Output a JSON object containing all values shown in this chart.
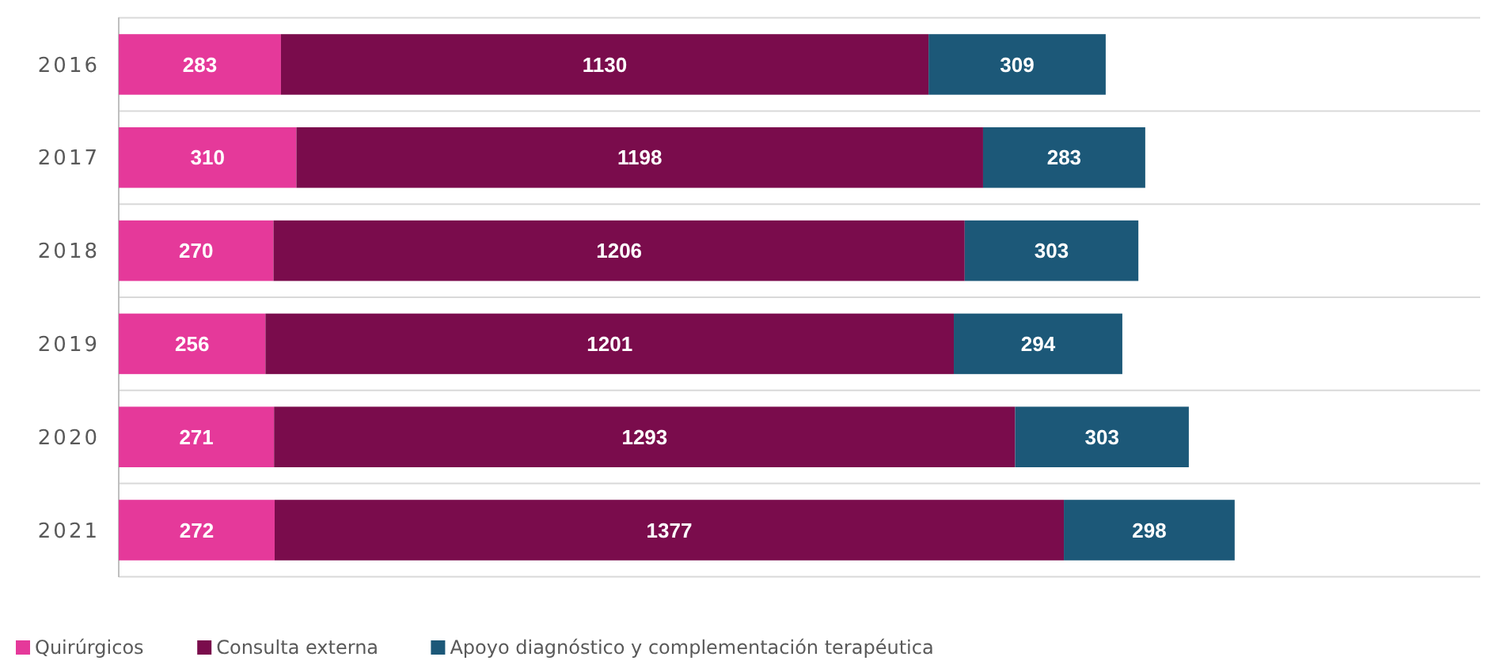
{
  "chart_data": {
    "type": "bar",
    "orientation": "horizontal",
    "stacked": true,
    "data_labels": true,
    "grid": "y",
    "legend": "bottom left",
    "tick_labels": "y",
    "categories": [
      "2016",
      "2017",
      "2018",
      "2019",
      "2020",
      "2021"
    ],
    "series": [
      {
        "name": "Quirúrgicos",
        "color": "#e5399a",
        "values": [
          283,
          310,
          270,
          256,
          271,
          272
        ]
      },
      {
        "name": "Consulta externa",
        "color": "#7a0c4c",
        "values": [
          1130,
          1198,
          1206,
          1201,
          1293,
          1377
        ]
      },
      {
        "name": "Apoyo diagnóstico y complementación terapéutica",
        "color": "#1c5878",
        "values": [
          309,
          283,
          303,
          294,
          303,
          298
        ]
      }
    ]
  }
}
